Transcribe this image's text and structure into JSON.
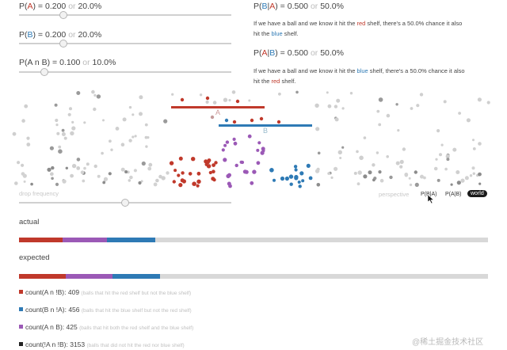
{
  "controls": [
    {
      "prefix": "P(",
      "var": "A",
      "suffix": ") = 0.200",
      "or": "or",
      "pct": "20.0%",
      "value": 0.2
    },
    {
      "prefix": "P(",
      "var": "B",
      "suffix": ") = 0.200",
      "or": "or",
      "pct": "20.0%",
      "value": 0.2
    },
    {
      "prefix": "P(",
      "var": "A n B",
      "suffix": ") = 0.100",
      "or": "or",
      "pct": "10.0%",
      "value": 0.1
    }
  ],
  "results": [
    {
      "t1": "P(",
      "tB": "B",
      "t2": "|",
      "tA": "A",
      "t3": ") = 0.500",
      "or": "or",
      "pct": "50.0%",
      "d1": "If we have a ball and we know it hit the ",
      "d2": "red",
      "d3": " shelf, there's a 50.0% chance it also",
      "d4": "hit the ",
      "d5": "blue",
      "d6": " shelf."
    },
    {
      "t1": "P(",
      "tA": "A",
      "t2": "|",
      "tB": "B",
      "t3": ") = 0.500",
      "or": "or",
      "pct": "50.0%",
      "d1": "If we have a ball and we know it hit the ",
      "d2": "blue",
      "d3": " shelf, there's a 50.0% chance it also",
      "d4": "hit the ",
      "d5": "red",
      "d6": " shelf."
    }
  ],
  "shelves": {
    "a_label": "A",
    "b_label": "B"
  },
  "drop_frequency": {
    "label": "drop frequency",
    "value": 0.45
  },
  "perspective": {
    "label": "perspective",
    "options": [
      "P(B|A)",
      "P(A|B)",
      "world"
    ],
    "selected": "world"
  },
  "actual": {
    "label": "actual",
    "red": 0.093,
    "purple": 0.095,
    "blue": 0.103
  },
  "expected": {
    "label": "expected",
    "red": 0.1,
    "purple": 0.1,
    "blue": 0.1
  },
  "legend": [
    {
      "text": "count(A n !B): 409",
      "hint": "(balls that hit the red shelf but not the blue shelf)",
      "color": "#c0392b"
    },
    {
      "text": "count(B n !A): 456",
      "hint": "(balls that hit the blue shelf but not the red shelf)",
      "color": "#2e7ab5"
    },
    {
      "text": "count(A n B): 425",
      "hint": "(balls that hit both the red shelf and the blue shelf)",
      "color": "#9b59b6"
    },
    {
      "text": "count(!A n !B): 3153",
      "hint": "(balls that did not hit the red nor blue shelf)",
      "color": "#222222"
    }
  ],
  "colors": {
    "red": "#c0392b",
    "blue": "#2e7ab5",
    "purple": "#9b59b6",
    "gray": "#bdbdbd"
  },
  "watermark": "@稀土掘金技术社区"
}
